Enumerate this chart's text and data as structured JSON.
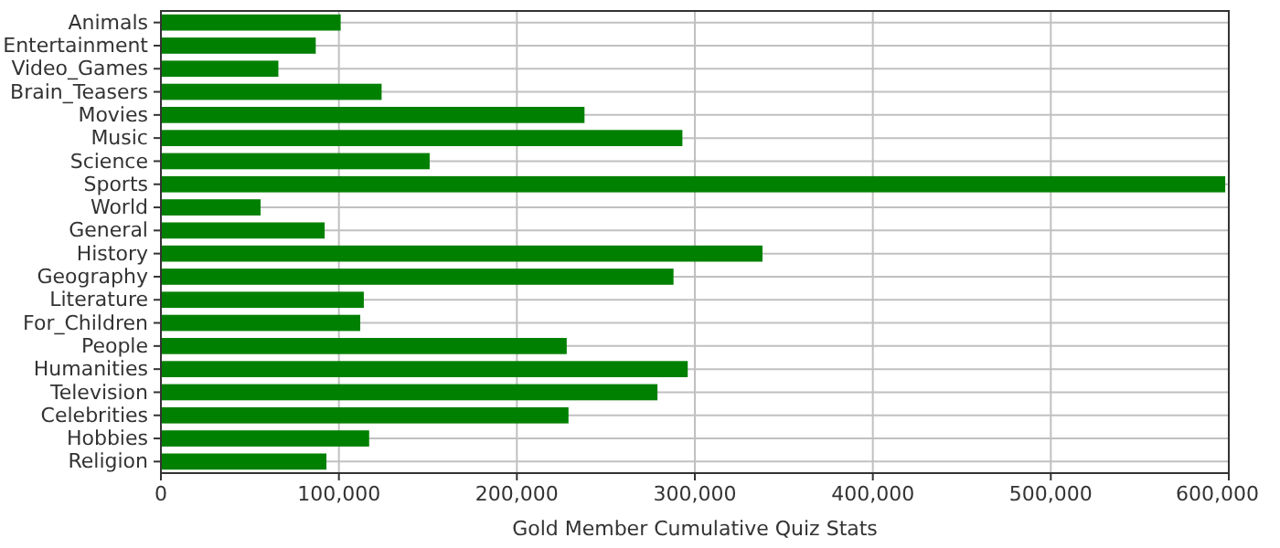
{
  "chart_data": {
    "type": "bar",
    "orientation": "horizontal",
    "xlabel": "Gold Member Cumulative Quiz Stats",
    "categories": [
      "Animals",
      "Entertainment",
      "Video_Games",
      "Brain_Teasers",
      "Movies",
      "Music",
      "Science",
      "Sports",
      "World",
      "General",
      "History",
      "Geography",
      "Literature",
      "For_Children",
      "People",
      "Humanities",
      "Television",
      "Celebrities",
      "Hobbies",
      "Religion"
    ],
    "values": [
      101000,
      87000,
      66000,
      124000,
      238000,
      293000,
      151000,
      598000,
      56000,
      92000,
      338000,
      288000,
      114000,
      112000,
      228000,
      296000,
      279000,
      229000,
      117000,
      93000
    ],
    "color": "#008000",
    "xlim": [
      0,
      600000
    ],
    "xticks": [
      {
        "value": 0,
        "label": "0"
      },
      {
        "value": 100000,
        "label": "100,000"
      },
      {
        "value": 200000,
        "label": "200,000"
      },
      {
        "value": 300000,
        "label": "300,000"
      },
      {
        "value": 400000,
        "label": "400,000"
      },
      {
        "value": 500000,
        "label": "500,000"
      },
      {
        "value": 600000,
        "label": "600,000"
      }
    ],
    "grid": true
  }
}
